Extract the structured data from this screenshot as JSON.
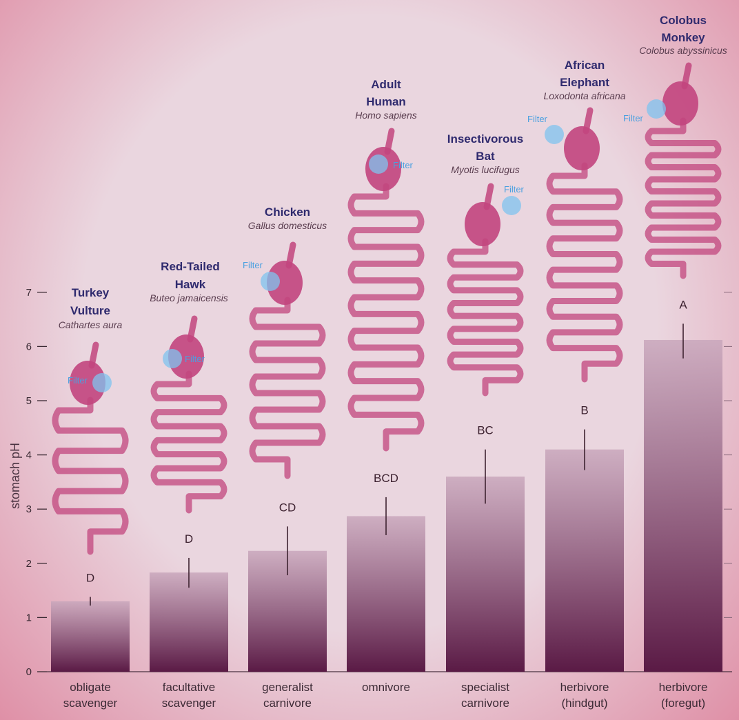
{
  "chart_data": {
    "type": "bar",
    "ylabel": "stomach pH",
    "ylim": [
      0,
      7
    ],
    "yticks": [
      0,
      1,
      2,
      3,
      4,
      5,
      6,
      7
    ],
    "categories": [
      [
        "obligate",
        "scavenger"
      ],
      [
        "facultative",
        "scavenger"
      ],
      [
        "generalist",
        "carnivore"
      ],
      [
        "omnivore"
      ],
      [
        "specialist",
        "carnivore"
      ],
      [
        "herbivore",
        "(hindgut)"
      ],
      [
        "herbivore",
        "(foregut)"
      ]
    ],
    "values": [
      1.3,
      1.83,
      2.23,
      2.87,
      3.6,
      4.1,
      6.12
    ],
    "error_low": [
      1.22,
      1.55,
      1.78,
      2.52,
      3.1,
      3.72,
      5.78
    ],
    "error_high": [
      1.38,
      2.1,
      2.68,
      3.22,
      4.1,
      4.47,
      6.42
    ],
    "significance": [
      "D",
      "D",
      "CD",
      "BCD",
      "BC",
      "B",
      "A"
    ],
    "animals": [
      {
        "name": [
          "Turkey",
          "Vulture"
        ],
        "species": "Cathartes aura"
      },
      {
        "name": [
          "Red-Tailed",
          "Hawk"
        ],
        "species": "Buteo jamaicensis"
      },
      {
        "name": [
          "Chicken"
        ],
        "species": "Gallus domesticus"
      },
      {
        "name": [
          "Adult",
          "Human"
        ],
        "species": "Homo sapiens"
      },
      {
        "name": [
          "Insectivorous",
          "Bat"
        ],
        "species": "Myotis lucifugus"
      },
      {
        "name": [
          "African",
          "Elephant"
        ],
        "species": "Loxodonta africana"
      },
      {
        "name": [
          "Colobus",
          "Monkey"
        ],
        "species": "Colobus abyssinicus"
      }
    ],
    "filter_label": "Filter",
    "colors": {
      "bar_top": "#c9a7bc",
      "bar_bottom": "#5a1a45",
      "organ": "#c2457e",
      "filter": "#7fc3ef",
      "label": "#2f2a6e"
    }
  }
}
